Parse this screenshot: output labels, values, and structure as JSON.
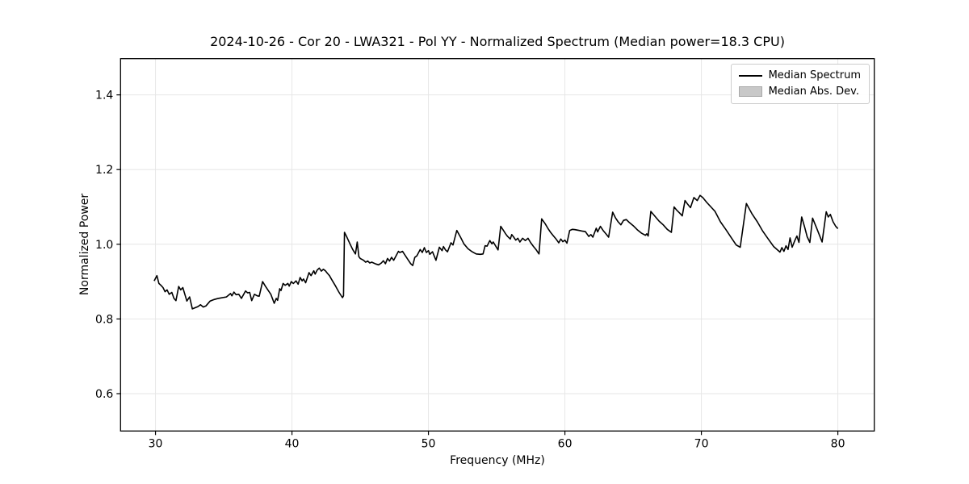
{
  "figure": {
    "title": "2024-10-26 - Cor 20 - LWA321 - Pol YY - Normalized Spectrum (Median power=18.3 CPU)"
  },
  "chart_data": {
    "type": "line",
    "title": "2024-10-26 - Cor 20 - LWA321 - Pol YY - Normalized Spectrum (Median power=18.3 CPU)",
    "xlabel": "Frequency (MHz)",
    "ylabel": "Normalized Power",
    "xlim": [
      27.44,
      82.67
    ],
    "ylim": [
      0.5,
      1.497
    ],
    "grid": true,
    "xticks": {
      "values": [
        30,
        40,
        50,
        60,
        70,
        80
      ],
      "labels": [
        "30",
        "40",
        "50",
        "60",
        "70",
        "80"
      ]
    },
    "yticks": {
      "values": [
        0.6,
        0.8,
        1.0,
        1.2,
        1.4
      ],
      "labels": [
        "0.6",
        "0.8",
        "1.0",
        "1.2",
        "1.4"
      ]
    },
    "legend": {
      "position": "upper right",
      "entries": [
        {
          "label": "Median Spectrum",
          "type": "line",
          "color": "#000000"
        },
        {
          "label": "Median Abs. Dev.",
          "type": "patch",
          "fill": "#c8c8c8",
          "edge": "#a9a9a9"
        }
      ]
    },
    "colors": {
      "line": "#000000",
      "band": "#c8c8c8",
      "grid": "#e6e6e6",
      "spine": "#000000",
      "background": "#ffffff"
    },
    "band_halfwidth": 0.002,
    "series": [
      {
        "name": "Median Spectrum",
        "points": [
          [
            29.9,
            0.902
          ],
          [
            30.1,
            0.916
          ],
          [
            30.25,
            0.895
          ],
          [
            30.4,
            0.89
          ],
          [
            30.55,
            0.884
          ],
          [
            30.7,
            0.873
          ],
          [
            30.85,
            0.878
          ],
          [
            31.0,
            0.866
          ],
          [
            31.2,
            0.871
          ],
          [
            31.35,
            0.855
          ],
          [
            31.5,
            0.849
          ],
          [
            31.7,
            0.887
          ],
          [
            31.85,
            0.878
          ],
          [
            32.0,
            0.884
          ],
          [
            32.15,
            0.866
          ],
          [
            32.3,
            0.848
          ],
          [
            32.5,
            0.859
          ],
          [
            32.7,
            0.827
          ],
          [
            32.9,
            0.83
          ],
          [
            33.1,
            0.833
          ],
          [
            33.3,
            0.838
          ],
          [
            33.5,
            0.832
          ],
          [
            33.7,
            0.835
          ],
          [
            34.0,
            0.848
          ],
          [
            34.3,
            0.852
          ],
          [
            34.6,
            0.855
          ],
          [
            34.9,
            0.857
          ],
          [
            35.2,
            0.859
          ],
          [
            35.5,
            0.868
          ],
          [
            35.6,
            0.862
          ],
          [
            35.75,
            0.872
          ],
          [
            35.9,
            0.865
          ],
          [
            36.1,
            0.866
          ],
          [
            36.3,
            0.855
          ],
          [
            36.6,
            0.875
          ],
          [
            36.75,
            0.87
          ],
          [
            36.9,
            0.871
          ],
          [
            37.05,
            0.849
          ],
          [
            37.25,
            0.866
          ],
          [
            37.45,
            0.862
          ],
          [
            37.6,
            0.861
          ],
          [
            37.85,
            0.9
          ],
          [
            38.05,
            0.888
          ],
          [
            38.25,
            0.877
          ],
          [
            38.45,
            0.866
          ],
          [
            38.7,
            0.842
          ],
          [
            38.85,
            0.855
          ],
          [
            38.95,
            0.85
          ],
          [
            39.1,
            0.881
          ],
          [
            39.2,
            0.876
          ],
          [
            39.35,
            0.895
          ],
          [
            39.5,
            0.89
          ],
          [
            39.7,
            0.895
          ],
          [
            39.8,
            0.888
          ],
          [
            39.95,
            0.9
          ],
          [
            40.1,
            0.895
          ],
          [
            40.3,
            0.902
          ],
          [
            40.45,
            0.893
          ],
          [
            40.6,
            0.911
          ],
          [
            40.75,
            0.902
          ],
          [
            40.85,
            0.907
          ],
          [
            41.0,
            0.897
          ],
          [
            41.25,
            0.924
          ],
          [
            41.4,
            0.916
          ],
          [
            41.6,
            0.929
          ],
          [
            41.7,
            0.92
          ],
          [
            41.85,
            0.931
          ],
          [
            42.0,
            0.936
          ],
          [
            42.15,
            0.928
          ],
          [
            42.3,
            0.933
          ],
          [
            42.45,
            0.929
          ],
          [
            42.6,
            0.922
          ],
          [
            42.75,
            0.916
          ],
          [
            42.9,
            0.906
          ],
          [
            43.2,
            0.888
          ],
          [
            43.45,
            0.871
          ],
          [
            43.7,
            0.857
          ],
          [
            43.78,
            0.862
          ],
          [
            43.85,
            1.032
          ],
          [
            44.05,
            1.017
          ],
          [
            44.25,
            1.001
          ],
          [
            44.45,
            0.986
          ],
          [
            44.65,
            0.974
          ],
          [
            44.78,
            1.006
          ],
          [
            44.9,
            0.967
          ],
          [
            45.0,
            0.962
          ],
          [
            45.25,
            0.957
          ],
          [
            45.4,
            0.952
          ],
          [
            45.55,
            0.955
          ],
          [
            45.7,
            0.95
          ],
          [
            45.85,
            0.952
          ],
          [
            46.15,
            0.947
          ],
          [
            46.35,
            0.945
          ],
          [
            46.55,
            0.95
          ],
          [
            46.7,
            0.956
          ],
          [
            46.85,
            0.948
          ],
          [
            47.0,
            0.962
          ],
          [
            47.15,
            0.955
          ],
          [
            47.3,
            0.965
          ],
          [
            47.45,
            0.957
          ],
          [
            47.8,
            0.981
          ],
          [
            47.9,
            0.978
          ],
          [
            48.1,
            0.981
          ],
          [
            48.3,
            0.97
          ],
          [
            48.5,
            0.959
          ],
          [
            48.7,
            0.948
          ],
          [
            48.85,
            0.943
          ],
          [
            49.0,
            0.965
          ],
          [
            49.15,
            0.969
          ],
          [
            49.4,
            0.986
          ],
          [
            49.55,
            0.978
          ],
          [
            49.7,
            0.991
          ],
          [
            49.85,
            0.978
          ],
          [
            50.0,
            0.983
          ],
          [
            50.1,
            0.973
          ],
          [
            50.3,
            0.98
          ],
          [
            50.55,
            0.957
          ],
          [
            50.8,
            0.992
          ],
          [
            51.0,
            0.983
          ],
          [
            51.1,
            0.994
          ],
          [
            51.25,
            0.985
          ],
          [
            51.4,
            0.98
          ],
          [
            51.65,
            1.004
          ],
          [
            51.8,
            0.998
          ],
          [
            52.08,
            1.037
          ],
          [
            52.35,
            1.019
          ],
          [
            52.6,
            1.001
          ],
          [
            52.9,
            0.988
          ],
          [
            53.2,
            0.98
          ],
          [
            53.5,
            0.974
          ],
          [
            53.8,
            0.973
          ],
          [
            54.0,
            0.974
          ],
          [
            54.15,
            0.996
          ],
          [
            54.3,
            0.995
          ],
          [
            54.5,
            1.01
          ],
          [
            54.65,
            1.001
          ],
          [
            54.75,
            1.006
          ],
          [
            55.1,
            0.985
          ],
          [
            55.3,
            1.048
          ],
          [
            55.5,
            1.037
          ],
          [
            55.65,
            1.028
          ],
          [
            55.8,
            1.021
          ],
          [
            56.0,
            1.014
          ],
          [
            56.1,
            1.026
          ],
          [
            56.25,
            1.019
          ],
          [
            56.4,
            1.011
          ],
          [
            56.55,
            1.016
          ],
          [
            56.7,
            1.006
          ],
          [
            56.9,
            1.016
          ],
          [
            57.1,
            1.01
          ],
          [
            57.3,
            1.016
          ],
          [
            57.5,
            1.004
          ],
          [
            57.7,
            0.994
          ],
          [
            57.9,
            0.985
          ],
          [
            58.1,
            0.974
          ],
          [
            58.3,
            1.068
          ],
          [
            58.55,
            1.055
          ],
          [
            58.75,
            1.043
          ],
          [
            58.95,
            1.032
          ],
          [
            59.15,
            1.023
          ],
          [
            59.35,
            1.014
          ],
          [
            59.55,
            1.004
          ],
          [
            59.7,
            1.014
          ],
          [
            59.85,
            1.007
          ],
          [
            60.0,
            1.011
          ],
          [
            60.15,
            1.003
          ],
          [
            60.35,
            1.037
          ],
          [
            60.55,
            1.04
          ],
          [
            60.75,
            1.039
          ],
          [
            61.05,
            1.037
          ],
          [
            61.3,
            1.035
          ],
          [
            61.5,
            1.034
          ],
          [
            61.75,
            1.021
          ],
          [
            61.9,
            1.026
          ],
          [
            62.05,
            1.019
          ],
          [
            62.3,
            1.043
          ],
          [
            62.4,
            1.033
          ],
          [
            62.6,
            1.048
          ],
          [
            62.8,
            1.037
          ],
          [
            63.0,
            1.028
          ],
          [
            63.2,
            1.019
          ],
          [
            63.5,
            1.086
          ],
          [
            63.7,
            1.071
          ],
          [
            63.9,
            1.06
          ],
          [
            64.1,
            1.052
          ],
          [
            64.3,
            1.064
          ],
          [
            64.5,
            1.066
          ],
          [
            64.7,
            1.059
          ],
          [
            65.0,
            1.05
          ],
          [
            65.3,
            1.039
          ],
          [
            65.6,
            1.03
          ],
          [
            65.9,
            1.024
          ],
          [
            66.0,
            1.028
          ],
          [
            66.1,
            1.022
          ],
          [
            66.3,
            1.088
          ],
          [
            66.6,
            1.075
          ],
          [
            66.9,
            1.062
          ],
          [
            67.2,
            1.052
          ],
          [
            67.5,
            1.04
          ],
          [
            67.8,
            1.032
          ],
          [
            68.0,
            1.1
          ],
          [
            68.2,
            1.091
          ],
          [
            68.4,
            1.084
          ],
          [
            68.6,
            1.076
          ],
          [
            68.8,
            1.117
          ],
          [
            69.0,
            1.107
          ],
          [
            69.2,
            1.098
          ],
          [
            69.45,
            1.125
          ],
          [
            69.7,
            1.117
          ],
          [
            69.9,
            1.131
          ],
          [
            70.1,
            1.125
          ],
          [
            70.4,
            1.112
          ],
          [
            70.7,
            1.1
          ],
          [
            71.0,
            1.088
          ],
          [
            71.4,
            1.06
          ],
          [
            71.8,
            1.039
          ],
          [
            72.2,
            1.017
          ],
          [
            72.55,
            0.998
          ],
          [
            72.85,
            0.992
          ],
          [
            73.3,
            1.109
          ],
          [
            73.7,
            1.082
          ],
          [
            74.1,
            1.06
          ],
          [
            74.5,
            1.035
          ],
          [
            74.9,
            1.014
          ],
          [
            75.3,
            0.994
          ],
          [
            75.76,
            0.979
          ],
          [
            75.9,
            0.991
          ],
          [
            76.05,
            0.981
          ],
          [
            76.2,
            0.996
          ],
          [
            76.35,
            0.986
          ],
          [
            76.5,
            1.017
          ],
          [
            76.65,
            0.992
          ],
          [
            76.85,
            1.01
          ],
          [
            77.0,
            1.022
          ],
          [
            77.15,
            1.005
          ],
          [
            77.35,
            1.073
          ],
          [
            77.55,
            1.048
          ],
          [
            77.75,
            1.02
          ],
          [
            77.95,
            1.005
          ],
          [
            78.15,
            1.07
          ],
          [
            78.45,
            1.043
          ],
          [
            78.85,
            1.006
          ],
          [
            79.15,
            1.087
          ],
          [
            79.3,
            1.073
          ],
          [
            79.45,
            1.08
          ],
          [
            79.65,
            1.06
          ],
          [
            79.85,
            1.048
          ],
          [
            80.0,
            1.042
          ]
        ]
      }
    ]
  }
}
